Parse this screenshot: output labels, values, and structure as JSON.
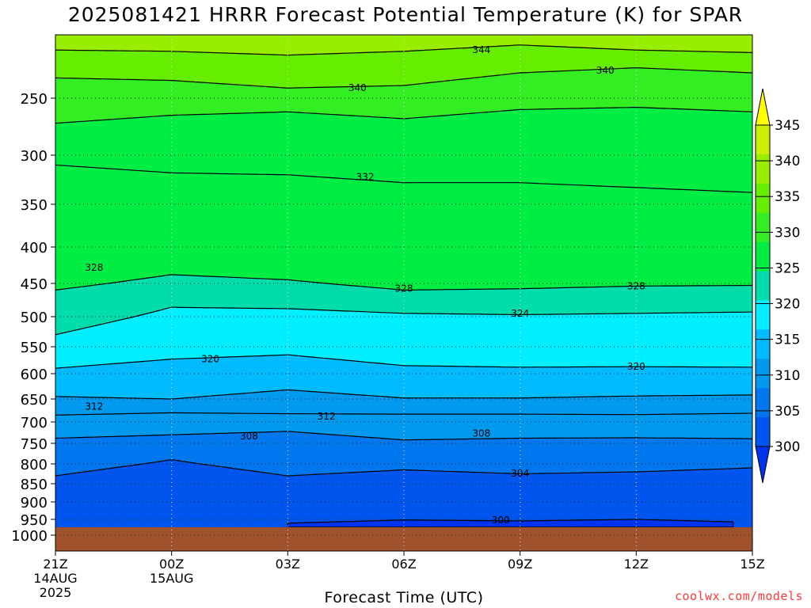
{
  "chart_data": {
    "type": "heatmap",
    "title": "2025081421 HRRR Forecast Potential Temperature (K) for SPAR",
    "xlabel": "Forecast Time (UTC)",
    "ylabel": "",
    "x_ticks": [
      {
        "hours": 0,
        "label": "21Z",
        "sub": [
          "14AUG",
          "2025"
        ]
      },
      {
        "hours": 3,
        "label": "00Z",
        "sub": [
          "15AUG"
        ]
      },
      {
        "hours": 6,
        "label": "03Z",
        "sub": []
      },
      {
        "hours": 9,
        "label": "06Z",
        "sub": []
      },
      {
        "hours": 12,
        "label": "09Z",
        "sub": []
      },
      {
        "hours": 15,
        "label": "12Z",
        "sub": []
      },
      {
        "hours": 18,
        "label": "15Z",
        "sub": []
      }
    ],
    "y_ticks": [
      250,
      300,
      350,
      400,
      450,
      500,
      550,
      600,
      650,
      700,
      750,
      800,
      850,
      900,
      950,
      1000
    ],
    "ylim": [
      200,
      1000
    ],
    "surface_pressure": 975,
    "colorbar": {
      "levels": [
        300,
        305,
        310,
        315,
        320,
        325,
        330,
        335,
        340,
        345
      ],
      "colors": [
        "#0033ee",
        "#0055ee",
        "#0077ee",
        "#0099ee",
        "#00bbff",
        "#00eeff",
        "#00ddaa",
        "#00ee44",
        "#33ee22",
        "#66ee00",
        "#99ee00",
        "#ccee00",
        "#ffff00"
      ],
      "labels": [
        "345",
        "340",
        "335",
        "330",
        "325",
        "320",
        "315",
        "310",
        "305",
        "300"
      ]
    },
    "contours_K": [
      {
        "theta": 344,
        "pressure_hPa": [
          [
            0,
            212
          ],
          [
            3,
            213
          ],
          [
            6,
            216
          ],
          [
            9,
            213
          ],
          [
            12,
            208
          ],
          [
            15,
            212
          ],
          [
            18,
            214
          ]
        ]
      },
      {
        "theta": 340,
        "pressure_hPa": [
          [
            0,
            234
          ],
          [
            3,
            236
          ],
          [
            6,
            242
          ],
          [
            9,
            240
          ],
          [
            12,
            230
          ],
          [
            15,
            226
          ],
          [
            18,
            230
          ]
        ]
      },
      {
        "theta": 336,
        "pressure_hPa": [
          [
            0,
            272
          ],
          [
            3,
            265
          ],
          [
            6,
            262
          ],
          [
            9,
            268
          ],
          [
            12,
            260
          ],
          [
            15,
            258
          ],
          [
            18,
            262
          ]
        ]
      },
      {
        "theta": 332,
        "pressure_hPa": [
          [
            0,
            310
          ],
          [
            3,
            318
          ],
          [
            6,
            320
          ],
          [
            9,
            328
          ],
          [
            12,
            328
          ],
          [
            15,
            333
          ],
          [
            18,
            338
          ]
        ]
      },
      {
        "theta": 328,
        "pressure_hPa": [
          [
            0,
            460
          ],
          [
            3,
            438
          ],
          [
            6,
            445
          ],
          [
            9,
            460
          ],
          [
            12,
            458
          ],
          [
            15,
            454
          ],
          [
            18,
            453
          ]
        ]
      },
      {
        "theta": 324,
        "pressure_hPa": [
          [
            0,
            530
          ],
          [
            3,
            486
          ],
          [
            6,
            488
          ],
          [
            9,
            495
          ],
          [
            12,
            497
          ],
          [
            15,
            495
          ],
          [
            18,
            493
          ]
        ]
      },
      {
        "theta": 320,
        "pressure_hPa": [
          [
            0,
            590
          ],
          [
            3,
            573
          ],
          [
            6,
            565
          ],
          [
            9,
            585
          ],
          [
            12,
            588
          ],
          [
            15,
            587
          ],
          [
            18,
            588
          ]
        ]
      },
      {
        "theta": 316,
        "pressure_hPa": [
          [
            0,
            645
          ],
          [
            3,
            650
          ],
          [
            6,
            632
          ],
          [
            9,
            648
          ],
          [
            12,
            648
          ],
          [
            15,
            644
          ],
          [
            18,
            642
          ]
        ]
      },
      {
        "theta": 312,
        "pressure_hPa": [
          [
            0,
            685
          ],
          [
            3,
            680
          ],
          [
            6,
            682
          ],
          [
            9,
            683
          ],
          [
            12,
            683
          ],
          [
            15,
            684
          ],
          [
            18,
            681
          ]
        ]
      },
      {
        "theta": 308,
        "pressure_hPa": [
          [
            0,
            738
          ],
          [
            3,
            730
          ],
          [
            6,
            722
          ],
          [
            9,
            742
          ],
          [
            12,
            738
          ],
          [
            15,
            737
          ],
          [
            18,
            739
          ]
        ]
      },
      {
        "theta": 304,
        "pressure_hPa": [
          [
            0,
            830
          ],
          [
            3,
            790
          ],
          [
            6,
            830
          ],
          [
            9,
            815
          ],
          [
            12,
            825
          ],
          [
            15,
            820
          ],
          [
            18,
            810
          ]
        ]
      },
      {
        "theta": 300,
        "pressure_hPa": [
          [
            6,
            962
          ],
          [
            9,
            952
          ],
          [
            12,
            955
          ],
          [
            15,
            950
          ],
          [
            17.5,
            958
          ]
        ]
      }
    ],
    "contour_labels": [
      {
        "text": "344",
        "hours": 11,
        "pressure": 212
      },
      {
        "text": "340",
        "hours": 7.8,
        "pressure": 242
      },
      {
        "text": "340",
        "hours": 14.2,
        "pressure": 228
      },
      {
        "text": "332",
        "hours": 8,
        "pressure": 322
      },
      {
        "text": "328",
        "hours": 1,
        "pressure": 428
      },
      {
        "text": "328",
        "hours": 9,
        "pressure": 458
      },
      {
        "text": "328",
        "hours": 15,
        "pressure": 454
      },
      {
        "text": "324",
        "hours": 12,
        "pressure": 495
      },
      {
        "text": "320",
        "hours": 4,
        "pressure": 573
      },
      {
        "text": "320",
        "hours": 15,
        "pressure": 587
      },
      {
        "text": "312",
        "hours": 1,
        "pressure": 666
      },
      {
        "text": "312",
        "hours": 7,
        "pressure": 688
      },
      {
        "text": "308",
        "hours": 5,
        "pressure": 733
      },
      {
        "text": "308",
        "hours": 11,
        "pressure": 727
      },
      {
        "text": "304",
        "hours": 12,
        "pressure": 824
      },
      {
        "text": "300",
        "hours": 11.5,
        "pressure": 952
      }
    ],
    "grid": true
  },
  "credit": "coolwx.com/models"
}
